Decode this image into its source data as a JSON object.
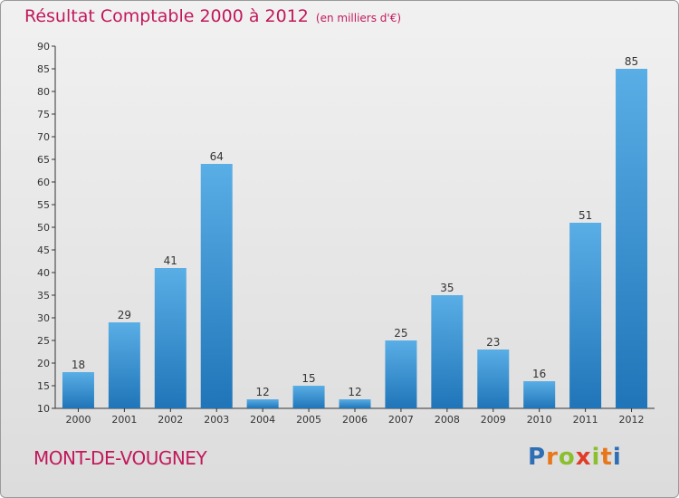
{
  "title": "Résultat Comptable 2000 à 2012",
  "subtitle": "(en milliers d'€)",
  "commune": "MONT-DE-VOUGNEY",
  "logo": {
    "letters": [
      "P",
      "r",
      "o",
      "x",
      "i",
      "t",
      "i"
    ],
    "colors": [
      "#2e6eb5",
      "#e8761a",
      "#8bbf2f",
      "#e03c28",
      "#8bbf2f",
      "#e8761a",
      "#2e6eb5"
    ]
  },
  "colors": {
    "title": "#c2185b",
    "bar_light": "#5aaee6",
    "bar_dark": "#1f75b8",
    "axis": "#333333"
  },
  "chart_data": {
    "type": "bar",
    "title": "Résultat Comptable 2000 à 2012",
    "subtitle": "(en milliers d'€)",
    "xlabel": "",
    "ylabel": "",
    "categories": [
      "2000",
      "2001",
      "2002",
      "2003",
      "2004",
      "2005",
      "2006",
      "2007",
      "2008",
      "2009",
      "2010",
      "2011",
      "2012"
    ],
    "values": [
      18,
      29,
      41,
      64,
      12,
      15,
      12,
      25,
      35,
      23,
      16,
      51,
      85
    ],
    "ylim": [
      10,
      90
    ],
    "yticks": [
      10,
      15,
      20,
      25,
      30,
      35,
      40,
      45,
      50,
      55,
      60,
      65,
      70,
      75,
      80,
      85,
      90
    ],
    "grid": false,
    "data_labels": true
  }
}
